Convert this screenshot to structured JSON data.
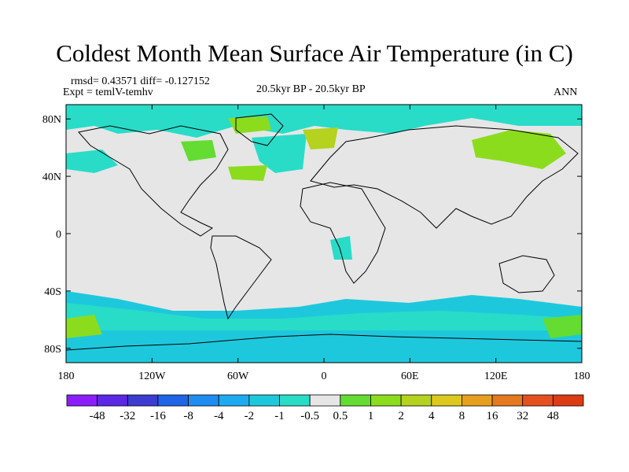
{
  "title": "Coldest Month Mean Surface Air Temperature (in C)",
  "stats": "rmsd= 0.43571 diff= -0.127152",
  "expt": "Expt = temlV-temhv",
  "center_label": "20.5kyr BP - 20.5kyr BP",
  "season": "ANN",
  "lat_labels": [
    "80N",
    "40N",
    "0",
    "40S",
    "80S"
  ],
  "lat_values": [
    80,
    40,
    0,
    -40,
    -80
  ],
  "lon_labels": [
    "180",
    "120W",
    "60W",
    "0",
    "60E",
    "120E",
    "180"
  ],
  "lon_values": [
    -180,
    -120,
    -60,
    0,
    60,
    120,
    180
  ],
  "colorbar": {
    "labels": [
      "-48",
      "-32",
      "-16",
      "-8",
      "-4",
      "-2",
      "-1",
      "-0.5",
      "0.5",
      "1",
      "2",
      "4",
      "8",
      "16",
      "32",
      "48"
    ],
    "colors": [
      "#8c1efb",
      "#5a28e6",
      "#3c3cd2",
      "#1e64e6",
      "#1e8cf0",
      "#1eaaf0",
      "#1ec8dc",
      "#28dcc8",
      "#e6e6e6",
      "#64dc32",
      "#8cdc1e",
      "#b4d21e",
      "#dcc81e",
      "#e6a01e",
      "#e6781e",
      "#e6501e",
      "#dc3c14"
    ]
  },
  "colors": {
    "background_field": "#e6e6e6",
    "neg_small": "#28dcc8",
    "neg_med": "#1ec8dc",
    "pos_small": "#64dc32",
    "pos_med": "#8cdc1e",
    "pos_large": "#b4d21e",
    "coast": "#000000"
  }
}
